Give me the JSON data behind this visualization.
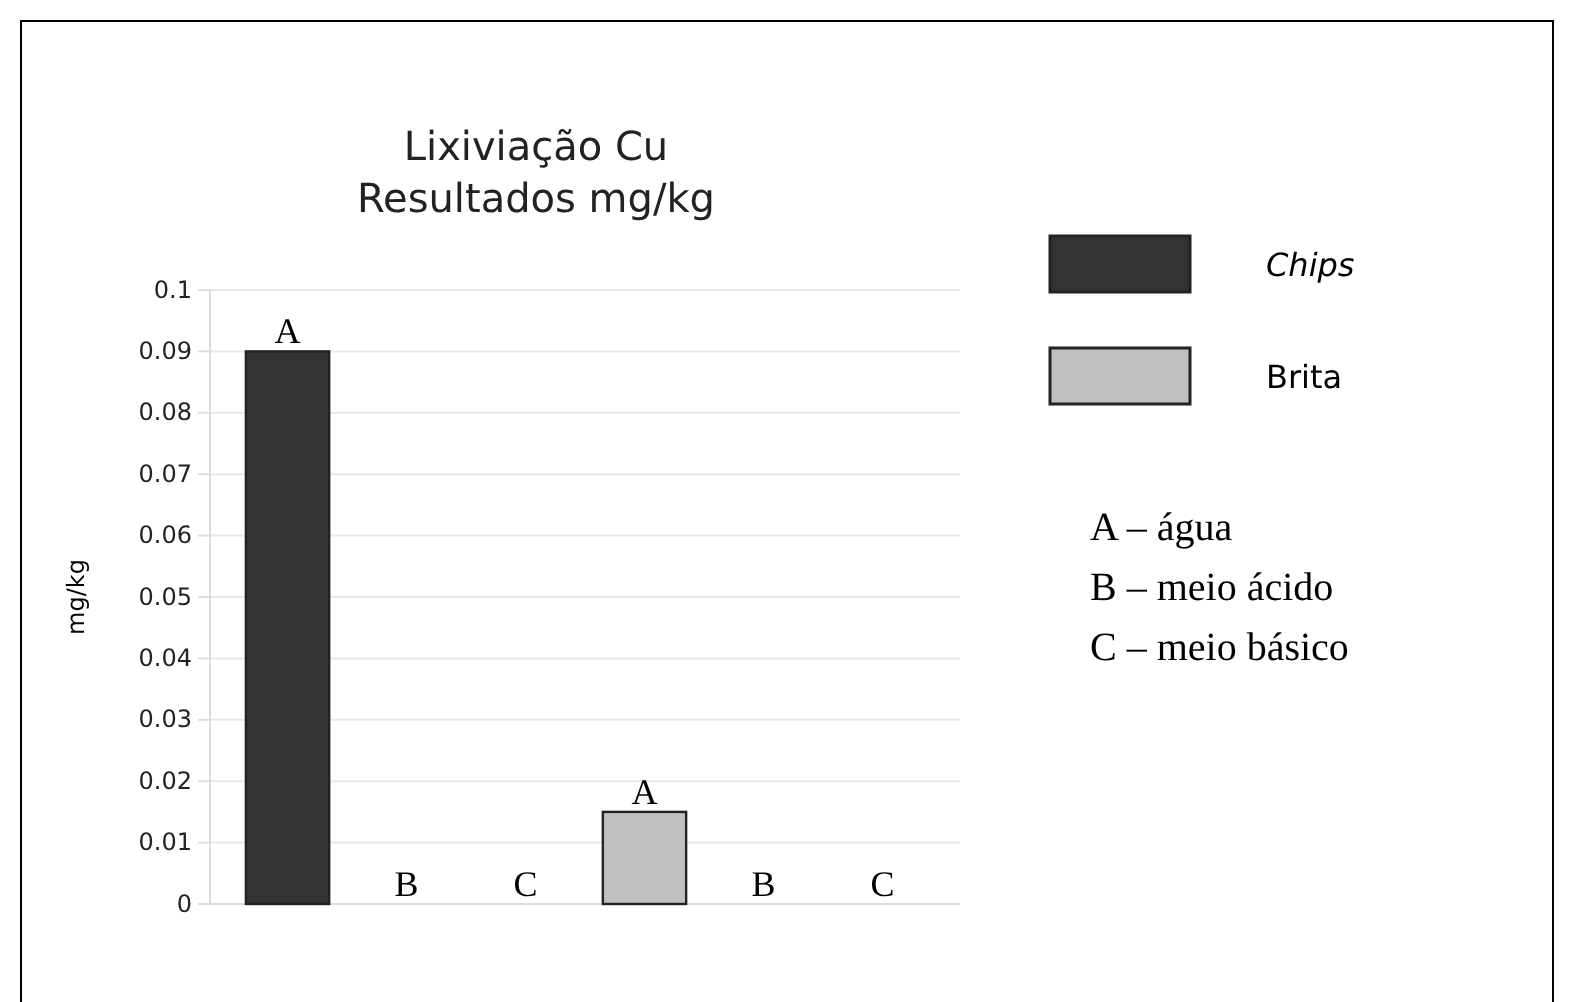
{
  "chart_data": {
    "type": "bar",
    "title": "Lixiviação Cu\nResultados mg/kg",
    "ylabel": "mg/kg",
    "categories": [
      null,
      null,
      null,
      null,
      null,
      null
    ],
    "series": [
      {
        "name": "Chips",
        "color": "#333333",
        "values": [
          0.09,
          0,
          0,
          null,
          null,
          null
        ],
        "value_labels": [
          "A",
          "B",
          "C",
          null,
          null,
          null
        ]
      },
      {
        "name": "Brita",
        "color": "#c0c0c0",
        "values": [
          null,
          null,
          null,
          0.015,
          0,
          0
        ],
        "value_labels": [
          null,
          null,
          null,
          "A",
          "B",
          "C"
        ]
      }
    ],
    "ylim": [
      0,
      0.1
    ],
    "yticks": [
      0,
      0.01,
      0.02,
      0.03,
      0.04,
      0.05,
      0.06,
      0.07,
      0.08,
      0.09,
      0.1
    ],
    "grid": "y",
    "legend": "right",
    "annotations": [
      "A – água",
      "B – meio ácido",
      "C – meio básico"
    ]
  }
}
